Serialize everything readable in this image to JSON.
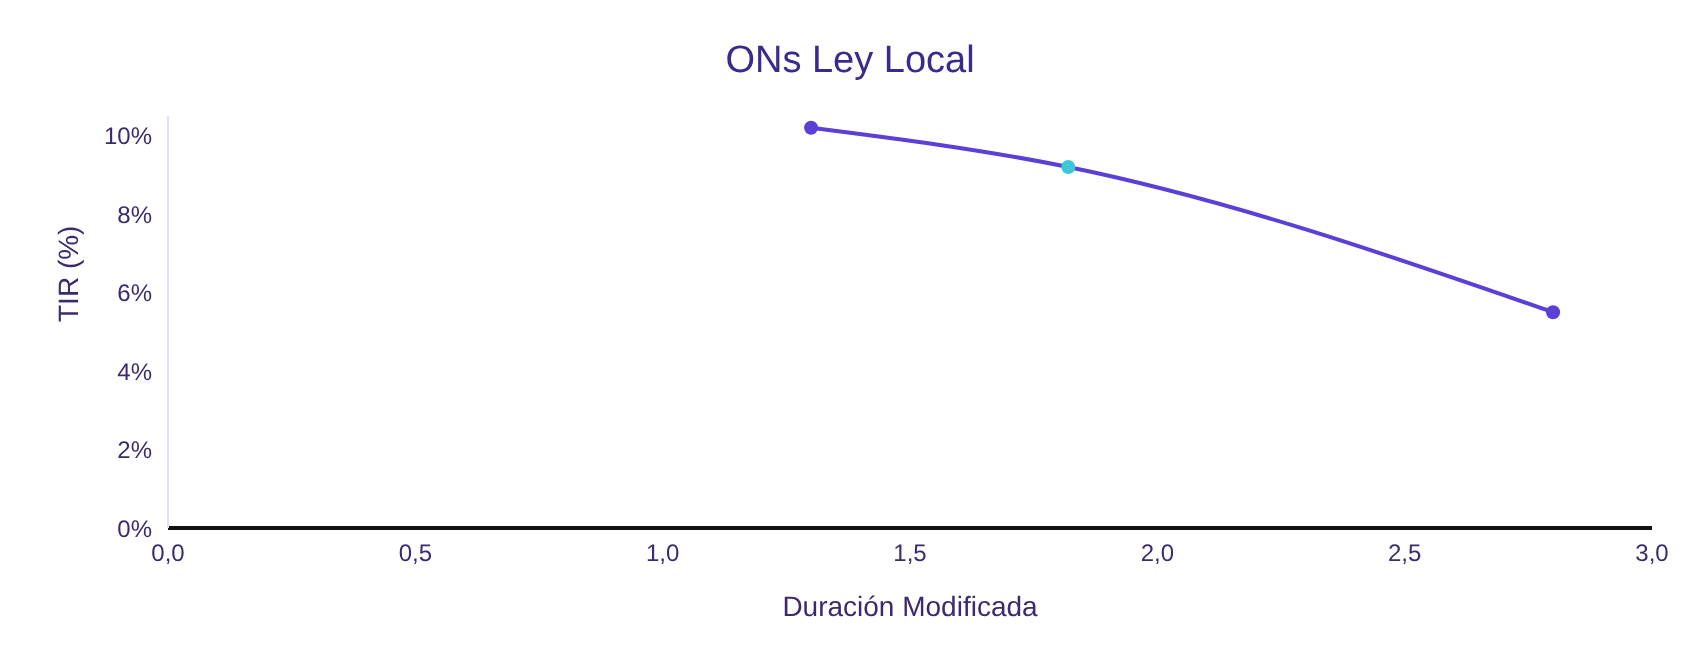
{
  "chart_data": {
    "type": "scatter",
    "title": "ONs Ley Local",
    "xlabel": "Duración Modificada",
    "ylabel": "TIR (%)",
    "series": [
      {
        "type": "line",
        "color": "#5b3fd6",
        "x": [
          1.3,
          1.82,
          2.8
        ],
        "values": [
          10.2,
          9.2,
          5.5
        ],
        "marker": "none"
      },
      {
        "x": [
          1.3,
          1.82,
          2.8
        ],
        "values": [
          10.2,
          9.2,
          5.5
        ],
        "colors": [
          "#5b3fd6",
          "#3cc8d8",
          "#5b3fd6"
        ],
        "marker": "circle"
      }
    ],
    "xlim": [
      0,
      3
    ],
    "xticks": [
      {
        "value": 0,
        "label": "0,0"
      },
      {
        "value": 0.5,
        "label": "0,5"
      },
      {
        "value": 1,
        "label": "1,0"
      },
      {
        "value": 1.5,
        "label": "1,5"
      },
      {
        "value": 2,
        "label": "2,0"
      },
      {
        "value": 2.5,
        "label": "2,5"
      },
      {
        "value": 3,
        "label": "3,0"
      }
    ],
    "ylim": [
      0,
      10.5
    ],
    "yticks": [
      {
        "value": 0,
        "label": "0%"
      },
      {
        "value": 2,
        "label": "2%"
      },
      {
        "value": 4,
        "label": "4%"
      },
      {
        "value": 6,
        "label": "6%"
      },
      {
        "value": 8,
        "label": "8%"
      },
      {
        "value": 10,
        "label": "10%"
      }
    ],
    "grid": false,
    "legend": false
  }
}
